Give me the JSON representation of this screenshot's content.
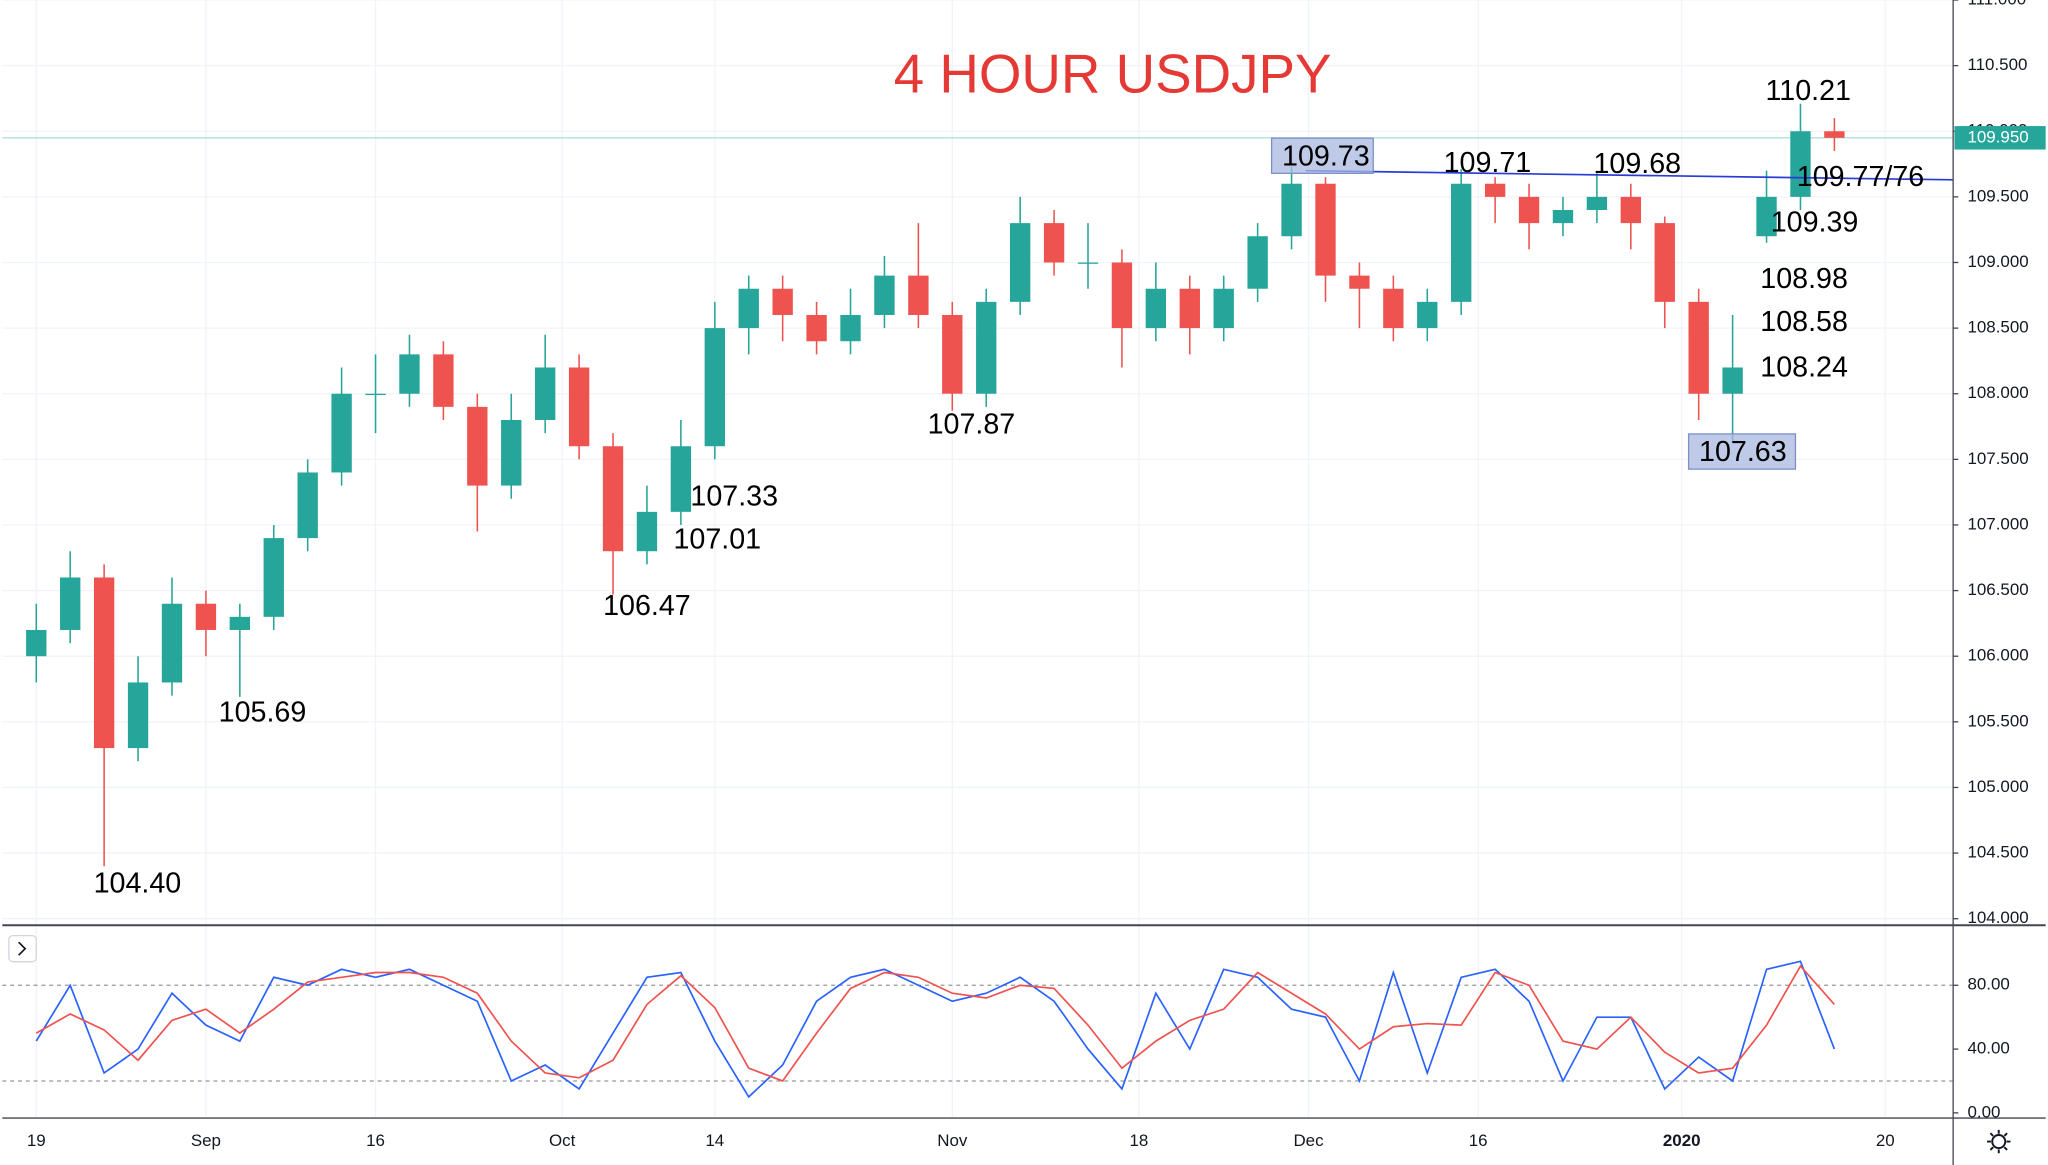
{
  "chart_data": [
    {
      "type": "candlestick",
      "title": "4 HOUR USDJPY",
      "title_color": "#e53935",
      "up_color": "#26a69a",
      "down_color": "#ef5350",
      "x": [
        0,
        2,
        4,
        6,
        8,
        10,
        12,
        14,
        16,
        18,
        20,
        22,
        24,
        26,
        28,
        30,
        32,
        34,
        36,
        38,
        40,
        42,
        44,
        46,
        48,
        50,
        52,
        54,
        56,
        58,
        60,
        62,
        64,
        66,
        68,
        70,
        72,
        74,
        76,
        78,
        80,
        82,
        84,
        86,
        88,
        90,
        92,
        94,
        96,
        98,
        100,
        102,
        104,
        106
      ],
      "open": [
        106.0,
        106.2,
        106.6,
        105.3,
        105.8,
        106.4,
        106.2,
        106.3,
        106.9,
        107.4,
        108.0,
        108.0,
        108.3,
        107.9,
        107.3,
        107.8,
        108.2,
        107.6,
        106.8,
        107.1,
        107.6,
        108.5,
        108.8,
        108.6,
        108.4,
        108.6,
        108.9,
        108.6,
        108.0,
        108.7,
        109.3,
        109.0,
        109.0,
        108.5,
        108.8,
        108.5,
        108.8,
        109.2,
        109.6,
        108.9,
        108.8,
        108.5,
        108.7,
        109.6,
        109.5,
        109.3,
        109.4,
        109.5,
        109.3,
        108.7,
        108.0,
        109.2,
        109.5,
        110.0
      ],
      "high": [
        106.4,
        106.8,
        106.7,
        106.0,
        106.6,
        106.5,
        106.4,
        107.0,
        107.5,
        108.2,
        108.3,
        108.45,
        108.4,
        108.0,
        108.0,
        108.45,
        108.3,
        107.7,
        107.3,
        107.8,
        108.7,
        108.9,
        108.9,
        108.7,
        108.8,
        109.05,
        109.3,
        108.7,
        108.8,
        109.5,
        109.4,
        109.3,
        109.1,
        109.0,
        108.9,
        108.9,
        109.3,
        109.73,
        109.65,
        109.0,
        108.9,
        108.8,
        109.71,
        109.65,
        109.6,
        109.5,
        109.68,
        109.6,
        109.35,
        108.8,
        108.6,
        109.7,
        110.21,
        110.1
      ],
      "low": [
        105.8,
        106.1,
        104.4,
        105.2,
        105.7,
        106.0,
        105.69,
        106.2,
        106.8,
        107.3,
        107.7,
        107.9,
        107.8,
        106.95,
        107.2,
        107.7,
        107.5,
        106.47,
        106.7,
        107.0,
        107.5,
        108.3,
        108.4,
        108.3,
        108.3,
        108.5,
        108.5,
        107.87,
        107.9,
        108.6,
        108.9,
        108.8,
        108.2,
        108.4,
        108.3,
        108.4,
        108.7,
        109.1,
        108.7,
        108.5,
        108.4,
        108.4,
        108.6,
        109.3,
        109.1,
        109.2,
        109.3,
        109.1,
        108.5,
        107.8,
        107.63,
        109.15,
        109.4,
        109.85
      ],
      "close": [
        106.2,
        106.6,
        105.3,
        105.8,
        106.4,
        106.2,
        106.3,
        106.9,
        107.4,
        108.0,
        108.0,
        108.3,
        107.9,
        107.3,
        107.8,
        108.2,
        107.6,
        106.8,
        107.1,
        107.6,
        108.5,
        108.8,
        108.6,
        108.4,
        108.6,
        108.9,
        108.6,
        108.0,
        108.7,
        109.3,
        109.0,
        109.0,
        108.5,
        108.8,
        108.5,
        108.8,
        109.2,
        109.6,
        108.9,
        108.8,
        108.5,
        108.7,
        109.6,
        109.5,
        109.3,
        109.4,
        109.5,
        109.3,
        108.7,
        108.0,
        108.2,
        109.5,
        110.0,
        109.95
      ],
      "xlim": [
        -2,
        113
      ],
      "xticks": [
        {
          "value": 0,
          "label": "19"
        },
        {
          "value": 10,
          "label": "Sep"
        },
        {
          "value": 20,
          "label": "16"
        },
        {
          "value": 31,
          "label": "Oct"
        },
        {
          "value": 40,
          "label": "14"
        },
        {
          "value": 54,
          "label": "Nov"
        },
        {
          "value": 65,
          "label": "18"
        },
        {
          "value": 75,
          "label": "Dec"
        },
        {
          "value": 85,
          "label": "16"
        },
        {
          "value": 97,
          "label": "2020"
        },
        {
          "value": 109,
          "label": "20"
        }
      ],
      "ylim": [
        104,
        111
      ],
      "yticks": [
        {
          "value": 104,
          "label": "104.000"
        },
        {
          "value": 104.5,
          "label": "104.500"
        },
        {
          "value": 105,
          "label": "105.000"
        },
        {
          "value": 105.5,
          "label": "105.500"
        },
        {
          "value": 106,
          "label": "106.000"
        },
        {
          "value": 106.5,
          "label": "106.500"
        },
        {
          "value": 107,
          "label": "107.000"
        },
        {
          "value": 107.5,
          "label": "107.500"
        },
        {
          "value": 108,
          "label": "108.000"
        },
        {
          "value": 108.5,
          "label": "108.500"
        },
        {
          "value": 109,
          "label": "109.000"
        },
        {
          "value": 109.5,
          "label": "109.500"
        },
        {
          "value": 110,
          "label": "110.000"
        },
        {
          "value": 110.5,
          "label": "110.500"
        },
        {
          "value": 111,
          "label": "111.000"
        }
      ],
      "last_price": {
        "value": 109.95,
        "label": "109.950",
        "color": "#26a69a"
      },
      "annotations": [
        "110.21",
        "109.73",
        "109.71",
        "109.68",
        "109.77/76",
        "109.39",
        "108.98",
        "108.58",
        "108.24",
        "107.87",
        "107.33",
        "107.01",
        "106.47",
        "105.69",
        "104.40",
        "107.63"
      ],
      "grid": true
    },
    {
      "type": "line",
      "x": [
        0,
        2,
        4,
        6,
        8,
        10,
        12,
        14,
        16,
        18,
        20,
        22,
        24,
        26,
        28,
        30,
        32,
        34,
        36,
        38,
        40,
        42,
        44,
        46,
        48,
        50,
        52,
        54,
        56,
        58,
        60,
        62,
        64,
        66,
        68,
        70,
        72,
        74,
        76,
        78,
        80,
        82,
        84,
        86,
        88,
        90,
        92,
        94,
        96,
        98,
        100,
        102,
        104,
        106
      ],
      "series": [
        {
          "color": "#2962ff",
          "values": [
            45,
            80,
            25,
            40,
            75,
            55,
            45,
            85,
            80,
            90,
            85,
            90,
            80,
            70,
            20,
            30,
            15,
            50,
            85,
            88,
            45,
            10,
            30,
            70,
            85,
            90,
            80,
            70,
            75,
            85,
            70,
            40,
            15,
            75,
            40,
            90,
            85,
            65,
            60,
            20,
            88,
            25,
            85,
            90,
            70,
            20,
            60,
            60,
            15,
            35,
            20,
            90,
            95,
            40
          ]
        },
        {
          "color": "#ef5350",
          "values": [
            50,
            62,
            52,
            33,
            58,
            65,
            50,
            65,
            82,
            85,
            88,
            88,
            85,
            75,
            45,
            25,
            22,
            33,
            68,
            86,
            66,
            28,
            20,
            50,
            78,
            88,
            85,
            75,
            72,
            80,
            78,
            55,
            28,
            45,
            58,
            65,
            88,
            75,
            62,
            40,
            54,
            56,
            55,
            88,
            80,
            45,
            40,
            60,
            38,
            25,
            28,
            55,
            92,
            68
          ]
        }
      ],
      "ylim": [
        0,
        116
      ],
      "yticks": [
        {
          "value": 0,
          "label": "0.00"
        },
        {
          "value": 40,
          "label": "40.00"
        },
        {
          "value": 80,
          "label": "80.00"
        }
      ],
      "levels": [
        80,
        20
      ]
    }
  ]
}
